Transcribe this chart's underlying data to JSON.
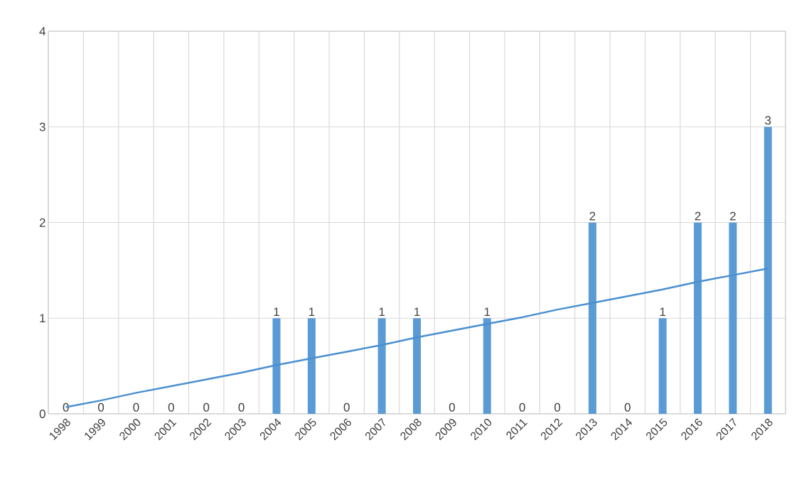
{
  "chart_data": {
    "type": "bar",
    "categories": [
      "1998",
      "1999",
      "2000",
      "2001",
      "2002",
      "2003",
      "2004",
      "2005",
      "2006",
      "2007",
      "2008",
      "2009",
      "2010",
      "2011",
      "2012",
      "2013",
      "2014",
      "2015",
      "2016",
      "2017",
      "2018"
    ],
    "series": [
      {
        "color": "#5b9bd5",
        "values": [
          0,
          0,
          0,
          0,
          0,
          0,
          1,
          1,
          0,
          1,
          1,
          0,
          1,
          0,
          0,
          2,
          0,
          1,
          2,
          2,
          3
        ],
        "value_labels": [
          "0",
          "0",
          "0",
          "0",
          "0",
          "0",
          "1",
          "1",
          "0",
          "1",
          "1",
          "0",
          "1",
          "0",
          "0",
          "2",
          "0",
          "1",
          "2",
          "2",
          "3"
        ]
      },
      {
        "type": "line",
        "color": "#4a8fcf",
        "values": [
          0.07,
          0.14,
          0.22,
          0.29,
          0.36,
          0.43,
          0.51,
          0.58,
          0.65,
          0.72,
          0.8,
          0.87,
          0.94,
          1.01,
          1.09,
          1.16,
          1.23,
          1.3,
          1.38,
          1.45,
          1.52
        ]
      }
    ],
    "ylim": [
      0,
      4
    ],
    "yticks": [
      0,
      1,
      2,
      3,
      4
    ],
    "grid": true
  }
}
